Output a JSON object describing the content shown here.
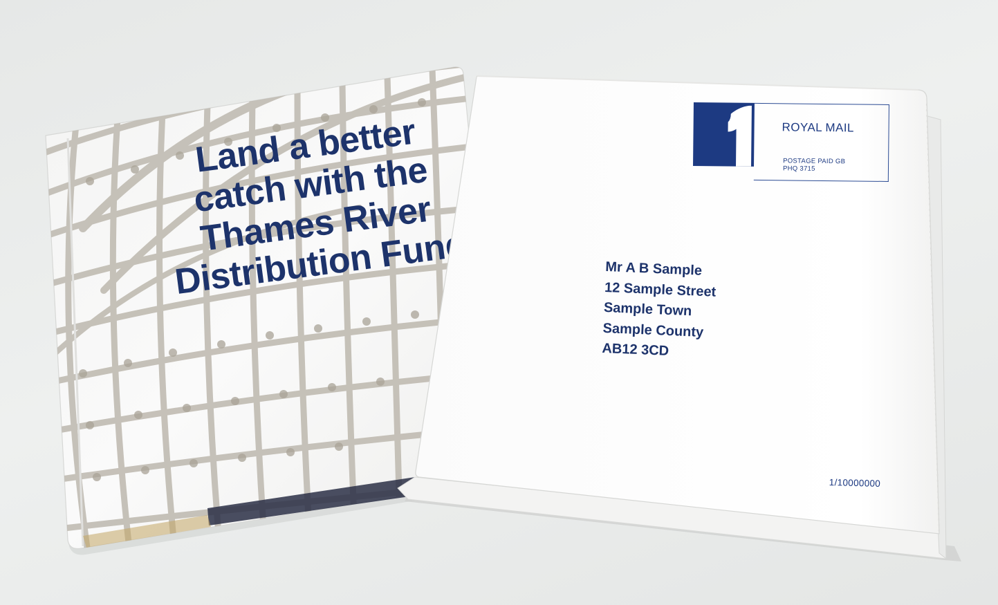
{
  "folder": {
    "headline": "Land a better\ncatch with the\nThames River\nDistribution Fund"
  },
  "envelope": {
    "stamp": {
      "title": "ROYAL MAIL",
      "line1": "POSTAGE PAID  GB",
      "line2": "PHQ 3715"
    },
    "address": [
      "Mr A B Sample",
      "12 Sample Street",
      "Sample Town",
      "Sample County",
      "AB12 3CD"
    ],
    "serial": "1/10000000"
  },
  "colors": {
    "ink_blue": "#1d336b",
    "stamp_blue": "#1d3a82",
    "background": "#e9ebea",
    "paper": "#fdfdfd",
    "net_gray": "#bdb8ae"
  }
}
